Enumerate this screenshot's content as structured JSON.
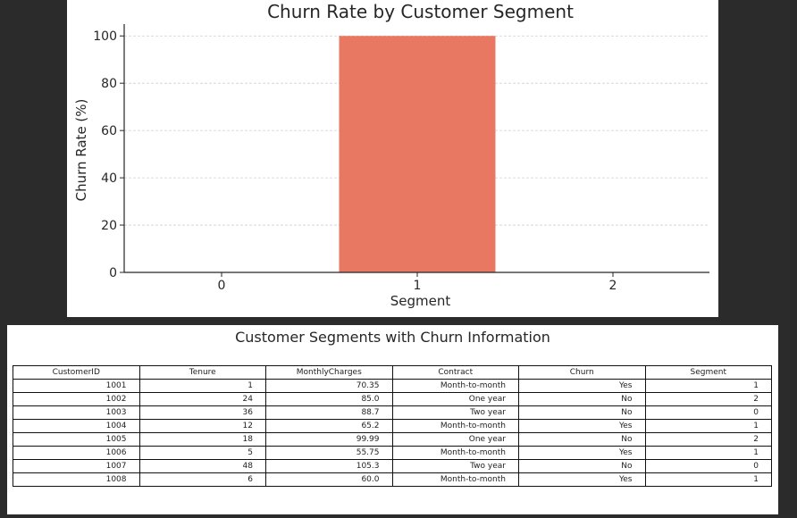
{
  "colors": {
    "bar": "#e87862",
    "axis": "#262626",
    "grid": "#cfcfcf",
    "text": "#262626"
  },
  "chart_data": [
    {
      "type": "bar",
      "title": "Churn Rate by Customer Segment",
      "xlabel": "Segment",
      "ylabel": "Churn Rate (%)",
      "categories": [
        "0",
        "1",
        "2"
      ],
      "values": [
        0,
        100,
        0
      ],
      "ylim": [
        0,
        105
      ],
      "yticks": [
        0,
        20,
        40,
        60,
        80,
        100
      ],
      "grid": "horizontal dashed",
      "legend": "none"
    },
    {
      "type": "table",
      "title": "Customer Segments with Churn Information",
      "columns": [
        "CustomerID",
        "Tenure",
        "MonthlyCharges",
        "Contract",
        "Churn",
        "Segment"
      ],
      "rows": [
        [
          "1001",
          "1",
          "70.35",
          "Month-to-month",
          "Yes",
          "1"
        ],
        [
          "1002",
          "24",
          "85.0",
          "One year",
          "No",
          "2"
        ],
        [
          "1003",
          "36",
          "88.7",
          "Two year",
          "No",
          "0"
        ],
        [
          "1004",
          "12",
          "65.2",
          "Month-to-month",
          "Yes",
          "1"
        ],
        [
          "1005",
          "18",
          "99.99",
          "One year",
          "No",
          "2"
        ],
        [
          "1006",
          "5",
          "55.75",
          "Month-to-month",
          "Yes",
          "1"
        ],
        [
          "1007",
          "48",
          "105.3",
          "Two year",
          "No",
          "0"
        ],
        [
          "1008",
          "6",
          "60.0",
          "Month-to-month",
          "Yes",
          "1"
        ]
      ]
    }
  ]
}
